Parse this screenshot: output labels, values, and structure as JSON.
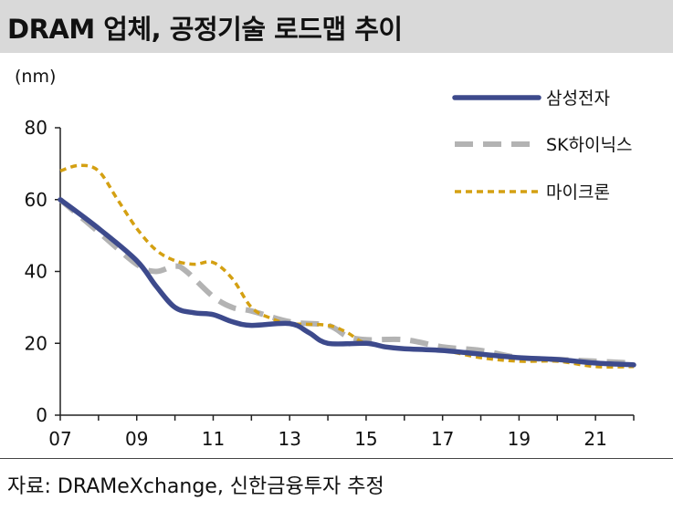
{
  "header": {
    "title": "DRAM 업체, 공정기술 로드맵 추이",
    "unit": "(nm)"
  },
  "footer": {
    "source": "자료: DRAMeXchange, 신한금융투자 추정"
  },
  "chart_data": {
    "type": "line",
    "title": "DRAM 업체, 공정기술 로드맵 추이",
    "xlabel": "",
    "ylabel": "(nm)",
    "xlim": [
      2007,
      2022
    ],
    "ylim": [
      0,
      80
    ],
    "x_ticks": [
      7,
      9,
      11,
      13,
      15,
      17,
      19,
      21
    ],
    "x_tick_labels": [
      "07",
      "09",
      "11",
      "13",
      "15",
      "17",
      "19",
      "21"
    ],
    "y_ticks": [
      0,
      20,
      40,
      60,
      80
    ],
    "y_tick_labels": [
      "0",
      "20",
      "40",
      "60",
      "80"
    ],
    "grid": false,
    "legend_position": "top-right",
    "series": [
      {
        "name": "삼성전자",
        "color": "#3d4a8c",
        "style": "solid",
        "points": [
          [
            2007,
            60
          ],
          [
            2008,
            52
          ],
          [
            2009,
            43
          ],
          [
            2009.5,
            36
          ],
          [
            2010,
            30
          ],
          [
            2010.5,
            28.5
          ],
          [
            2011,
            28
          ],
          [
            2011.5,
            26
          ],
          [
            2012,
            25
          ],
          [
            2013,
            25.5
          ],
          [
            2013.5,
            23
          ],
          [
            2014,
            20
          ],
          [
            2015,
            20
          ],
          [
            2015.5,
            19
          ],
          [
            2016,
            18.5
          ],
          [
            2017,
            18
          ],
          [
            2018,
            17
          ],
          [
            2019,
            16
          ],
          [
            2020,
            15.5
          ],
          [
            2021,
            14.5
          ],
          [
            2022,
            14
          ]
        ]
      },
      {
        "name": "SK하이닉스",
        "color": "#b3b3b3",
        "style": "dashed",
        "points": [
          [
            2007,
            60
          ],
          [
            2008,
            51
          ],
          [
            2009,
            42
          ],
          [
            2009.5,
            40
          ],
          [
            2010,
            41.5
          ],
          [
            2010.3,
            40
          ],
          [
            2011,
            33
          ],
          [
            2011.5,
            30
          ],
          [
            2012,
            29
          ],
          [
            2013,
            26
          ],
          [
            2014,
            25
          ],
          [
            2014.5,
            22
          ],
          [
            2015,
            21
          ],
          [
            2016,
            21
          ],
          [
            2017,
            19
          ],
          [
            2018,
            18
          ],
          [
            2019,
            16
          ],
          [
            2020,
            15.5
          ],
          [
            2021,
            15
          ],
          [
            2022,
            14.5
          ]
        ]
      },
      {
        "name": "마이크론",
        "color": "#d4a012",
        "style": "dotted",
        "points": [
          [
            2007,
            68
          ],
          [
            2007.5,
            69.5
          ],
          [
            2008,
            68
          ],
          [
            2008.5,
            60
          ],
          [
            2009,
            52
          ],
          [
            2009.5,
            46
          ],
          [
            2010,
            43
          ],
          [
            2010.5,
            42
          ],
          [
            2011,
            42.5
          ],
          [
            2011.5,
            38
          ],
          [
            2012,
            30
          ],
          [
            2012.5,
            27
          ],
          [
            2013,
            25.5
          ],
          [
            2014,
            25
          ],
          [
            2014.5,
            23
          ],
          [
            2015,
            20
          ],
          [
            2016,
            18.5
          ],
          [
            2017,
            18
          ],
          [
            2018,
            16
          ],
          [
            2019,
            15
          ],
          [
            2020,
            15
          ],
          [
            2021,
            13.5
          ],
          [
            2022,
            13.5
          ]
        ]
      }
    ]
  }
}
